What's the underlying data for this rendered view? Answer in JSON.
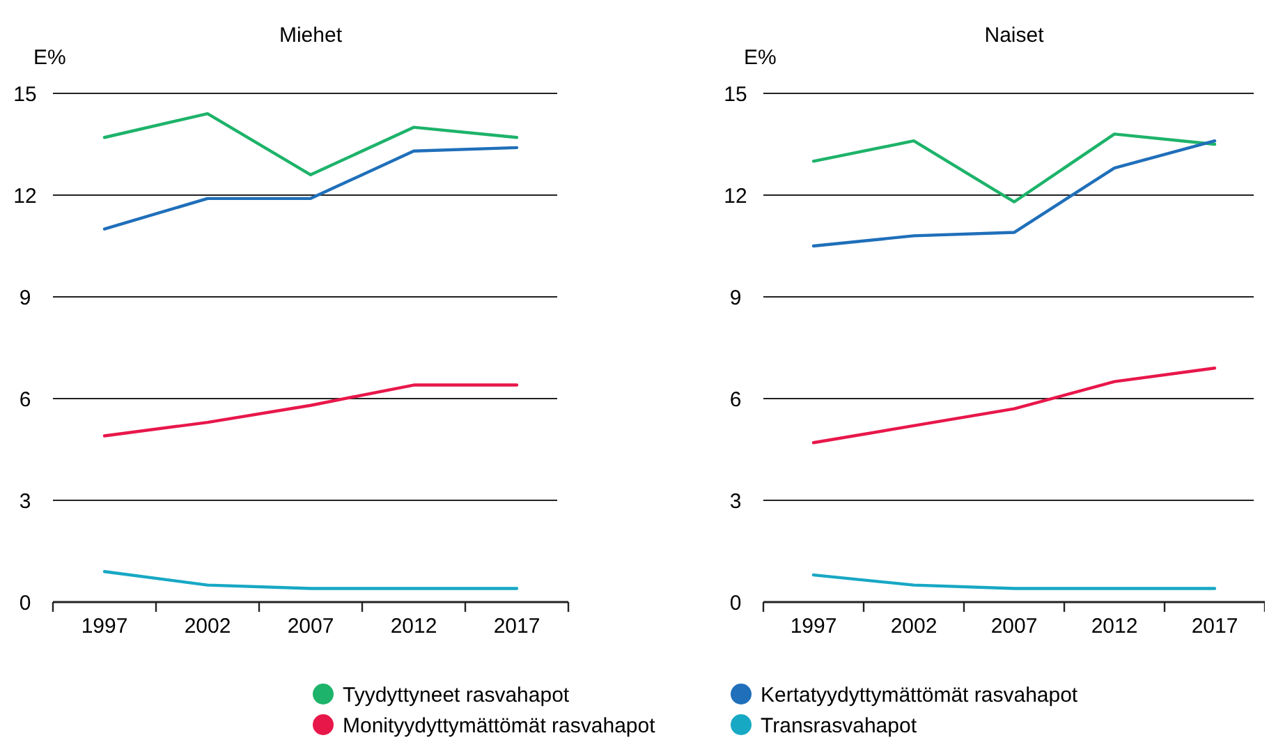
{
  "chart_data": [
    {
      "type": "line",
      "title": "Miehet",
      "ylabel": "E%",
      "categories": [
        "1997",
        "2002",
        "2007",
        "2012",
        "2017"
      ],
      "ylim": [
        0,
        15
      ],
      "yticks": [
        0,
        3,
        6,
        9,
        12,
        15
      ],
      "grid": "y",
      "legend": "bottom",
      "series": [
        {
          "name": "Tyydyttyneet rasvahapot",
          "color": "#1db36a",
          "values": [
            13.7,
            14.4,
            12.6,
            14.0,
            13.7
          ]
        },
        {
          "name": "Kertatyydyttymättömät rasvahapot",
          "color": "#1f6fba",
          "values": [
            11.0,
            11.9,
            11.9,
            13.3,
            13.4
          ]
        },
        {
          "name": "Monityydyttymättömät rasvahapot",
          "color": "#e8174a",
          "values": [
            4.9,
            5.3,
            5.8,
            6.4,
            6.4
          ]
        },
        {
          "name": "Transrasvahapot",
          "color": "#17a8c4",
          "values": [
            0.9,
            0.5,
            0.4,
            0.4,
            0.4
          ]
        }
      ]
    },
    {
      "type": "line",
      "title": "Naiset",
      "ylabel": "E%",
      "categories": [
        "1997",
        "2002",
        "2007",
        "2012",
        "2017"
      ],
      "ylim": [
        0,
        15
      ],
      "yticks": [
        0,
        3,
        6,
        9,
        12,
        15
      ],
      "grid": "y",
      "series": [
        {
          "color": "#1db36a",
          "values": [
            13.0,
            13.6,
            11.8,
            13.8,
            13.5
          ]
        },
        {
          "color": "#1f6fba",
          "values": [
            10.5,
            10.8,
            10.9,
            12.8,
            13.6
          ]
        },
        {
          "color": "#e8174a",
          "values": [
            4.7,
            5.2,
            5.7,
            6.5,
            6.9
          ]
        },
        {
          "color": "#17a8c4",
          "values": [
            0.8,
            0.5,
            0.4,
            0.4,
            0.4
          ]
        }
      ]
    }
  ]
}
